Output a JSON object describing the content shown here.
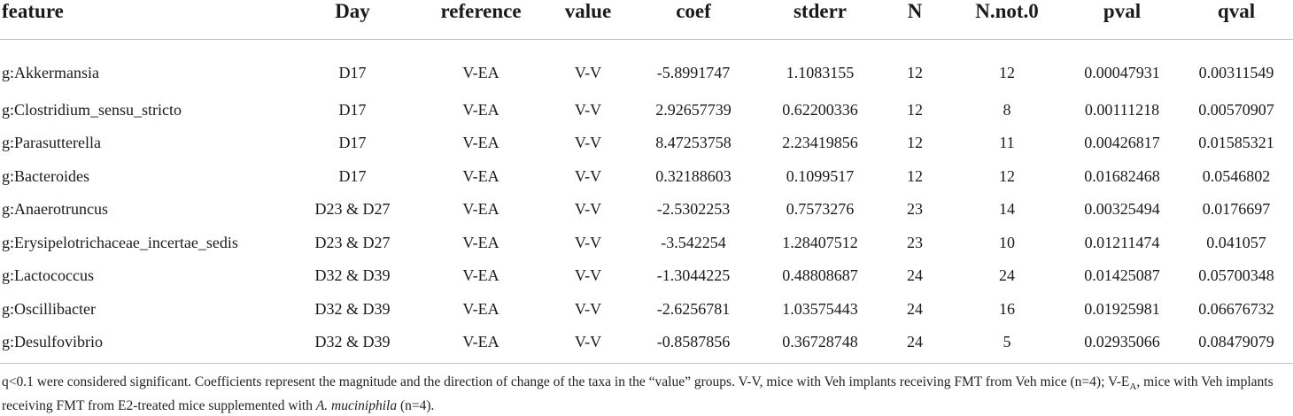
{
  "table": {
    "headers": [
      "feature",
      "Day",
      "reference",
      "value",
      "coef",
      "stderr",
      "N",
      "N.not.0",
      "pval",
      "qval"
    ],
    "rows": [
      [
        "g:Akkermansia",
        "D17",
        "V-EA",
        "V-V",
        "-5.8991747",
        "1.1083155",
        "12",
        "12",
        "0.00047931",
        "0.00311549"
      ],
      [
        "g:Clostridium_sensu_stricto",
        "D17",
        "V-EA",
        "V-V",
        "2.92657739",
        "0.62200336",
        "12",
        "8",
        "0.00111218",
        "0.00570907"
      ],
      [
        "g:Parasutterella",
        "D17",
        "V-EA",
        "V-V",
        "8.47253758",
        "2.23419856",
        "12",
        "11",
        "0.00426817",
        "0.01585321"
      ],
      [
        "g:Bacteroides",
        "D17",
        "V-EA",
        "V-V",
        "0.32188603",
        "0.1099517",
        "12",
        "12",
        "0.01682468",
        "0.0546802"
      ],
      [
        "g:Anaerotruncus",
        "D23 & D27",
        "V-EA",
        "V-V",
        "-2.5302253",
        "0.7573276",
        "23",
        "14",
        "0.00325494",
        "0.0176697"
      ],
      [
        "g:Erysipelotrichaceae_incertae_sedis",
        "D23 & D27",
        "V-EA",
        "V-V",
        "-3.542254",
        "1.28407512",
        "23",
        "10",
        "0.01211474",
        "0.041057"
      ],
      [
        "g:Lactococcus",
        "D32 & D39",
        "V-EA",
        "V-V",
        "-1.3044225",
        "0.48808687",
        "24",
        "24",
        "0.01425087",
        "0.05700348"
      ],
      [
        "g:Oscillibacter",
        "D32 & D39",
        "V-EA",
        "V-V",
        "-2.6256781",
        "1.03575443",
        "24",
        "16",
        "0.01925981",
        "0.06676732"
      ],
      [
        "g:Desulfovibrio",
        "D32 & D39",
        "V-EA",
        "V-V",
        "-0.8587856",
        "0.36728748",
        "24",
        "5",
        "0.02935066",
        "0.08479079"
      ]
    ]
  },
  "footnote": {
    "part1": "q<0.1 were considered significant. Coefficients represent the magnitude and the direction of change of the taxa in the “value” groups. V-V, mice with Veh implants receiving FMT from Veh mice (n=4); V-E",
    "sub": "A",
    "part2": ", mice with Veh implants receiving FMT from E2-treated mice supplemented with ",
    "italic": "A. muciniphila",
    "part3": " (n=4)."
  }
}
